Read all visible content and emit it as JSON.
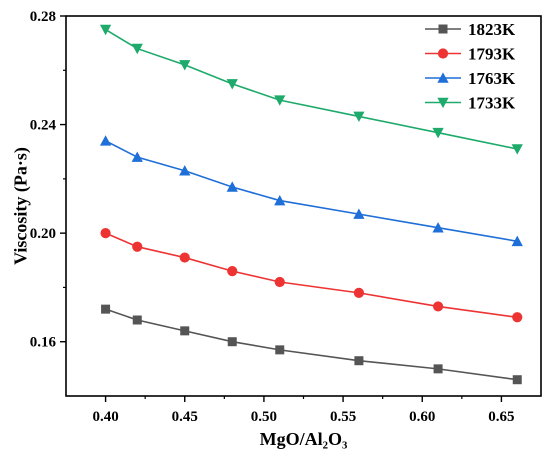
{
  "chart_data": {
    "type": "line",
    "xlabel": "MgO/Al₂O₃",
    "ylabel": "Viscosity (Pa·s)",
    "x": [
      0.4,
      0.42,
      0.45,
      0.48,
      0.51,
      0.56,
      0.61,
      0.66
    ],
    "xlim": [
      0.375,
      0.675
    ],
    "ylim": [
      0.14,
      0.28
    ],
    "xticks": [
      "0.40",
      "0.45",
      "0.50",
      "0.55",
      "0.60",
      "0.65"
    ],
    "yticks": [
      "0.16",
      "0.20",
      "0.24",
      "0.28"
    ],
    "grid": false,
    "legend_position": "top-right",
    "series": [
      {
        "name": "1823K",
        "marker": "square",
        "color": "#555555",
        "values": [
          0.172,
          0.168,
          0.164,
          0.16,
          0.157,
          0.153,
          0.15,
          0.146
        ]
      },
      {
        "name": "1793K",
        "marker": "circle",
        "color": "#ee3333",
        "values": [
          0.2,
          0.195,
          0.191,
          0.186,
          0.182,
          0.178,
          0.173,
          0.169
        ]
      },
      {
        "name": "1763K",
        "marker": "triangle-up",
        "color": "#1f6fd8",
        "values": [
          0.234,
          0.228,
          0.223,
          0.217,
          0.212,
          0.207,
          0.202,
          0.197
        ]
      },
      {
        "name": "1733K",
        "marker": "triangle-down",
        "color": "#1daa6a",
        "values": [
          0.275,
          0.268,
          0.262,
          0.255,
          0.249,
          0.243,
          0.237,
          0.231
        ]
      }
    ]
  }
}
